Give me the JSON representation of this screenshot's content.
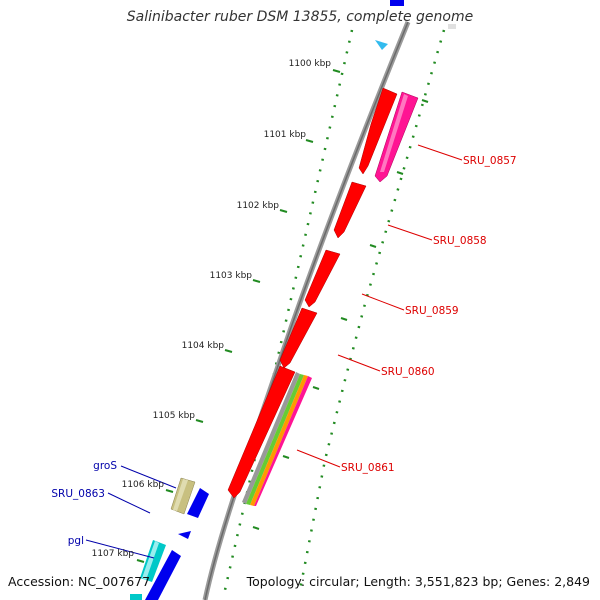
{
  "title": "Salinibacter ruber DSM 13855, complete genome",
  "accession": "Accession: NC_007677",
  "summary": "Topology: circular; Length: 3,551,823 bp; Genes: 2,849",
  "colors": {
    "backbone": "#8a8a8a",
    "tick": "#228b22",
    "gene_red": "#ff0000",
    "gene_magenta": "#ff1493",
    "gene_blue": "#0000ee",
    "gene_cyan": "#00c8c8",
    "gene_khaki": "#c8c080",
    "label_red": "#dd0000",
    "label_blue": "#0000aa"
  },
  "scale_labels": [
    "1100 kbp",
    "1101 kbp",
    "1102 kbp",
    "1103 kbp",
    "1104 kbp",
    "1105 kbp",
    "1106 kbp",
    "1107 kbp"
  ],
  "gene_labels": [
    {
      "name": "SRU_0857",
      "strand": "reverse"
    },
    {
      "name": "SRU_0858",
      "strand": "reverse"
    },
    {
      "name": "SRU_0859",
      "strand": "reverse"
    },
    {
      "name": "SRU_0860",
      "strand": "reverse"
    },
    {
      "name": "SRU_0861",
      "strand": "reverse"
    },
    {
      "name": "groS",
      "strand": "forward"
    },
    {
      "name": "SRU_0863",
      "strand": "forward"
    },
    {
      "name": "pgl",
      "strand": "forward"
    }
  ]
}
